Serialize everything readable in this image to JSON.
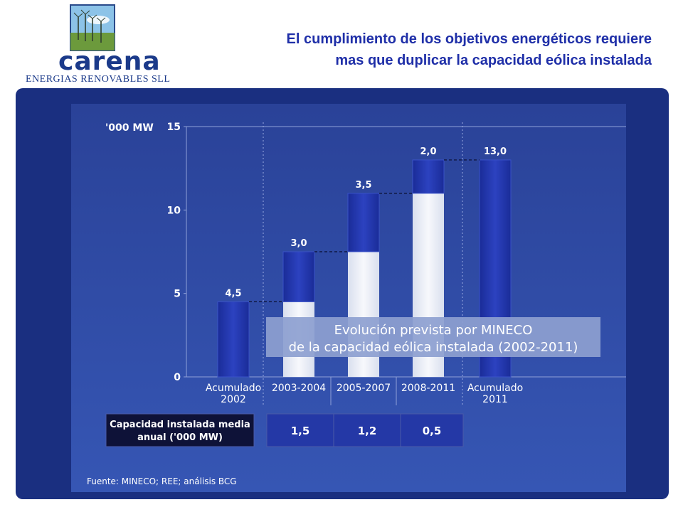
{
  "header": {
    "title_line1": "El cumplimiento de los objetivos energéticos requiere",
    "title_line2": "mas que duplicar la capacidad eólica instalada"
  },
  "logo": {
    "name": "carena",
    "subtitle": "ENERGIAS RENOVABLES SLL"
  },
  "chart_data": {
    "type": "bar",
    "unit_label": "'000 MW",
    "ylim": [
      0,
      15
    ],
    "yticks": [
      "0",
      "5",
      "10",
      "15"
    ],
    "categories": [
      [
        "Acumulado",
        "2002"
      ],
      [
        "2003-2004"
      ],
      [
        "2005-2007"
      ],
      [
        "2008-2011"
      ],
      [
        "Acumulado",
        "2011"
      ]
    ],
    "series": [
      {
        "role": "base",
        "values": [
          0,
          4.5,
          7.5,
          11.0,
          0
        ]
      },
      {
        "role": "increment",
        "values": [
          4.5,
          3.0,
          3.5,
          2.0,
          13.0
        ]
      }
    ],
    "value_labels": [
      "4,5",
      "3,0",
      "3,5",
      "2,0",
      "13,0"
    ],
    "annotation": {
      "line1": "Evolución prevista por MINECO",
      "line2": "de la capacidad eólica instalada (2002-2011)"
    },
    "table": {
      "row_label_line1": "Capacidad instalada media",
      "row_label_line2": "anual ('000 MW)",
      "values": [
        "1,5",
        "1,2",
        "0,5"
      ]
    },
    "source": "Fuente: MINECO; REE; análisis BCG",
    "colors": {
      "panel": "#1a2f80",
      "plot_background": "#2e49a6",
      "bar_blue": "#2236a8",
      "bar_white": "#eef1f8",
      "annotation_box": "#8d9fd0"
    }
  }
}
